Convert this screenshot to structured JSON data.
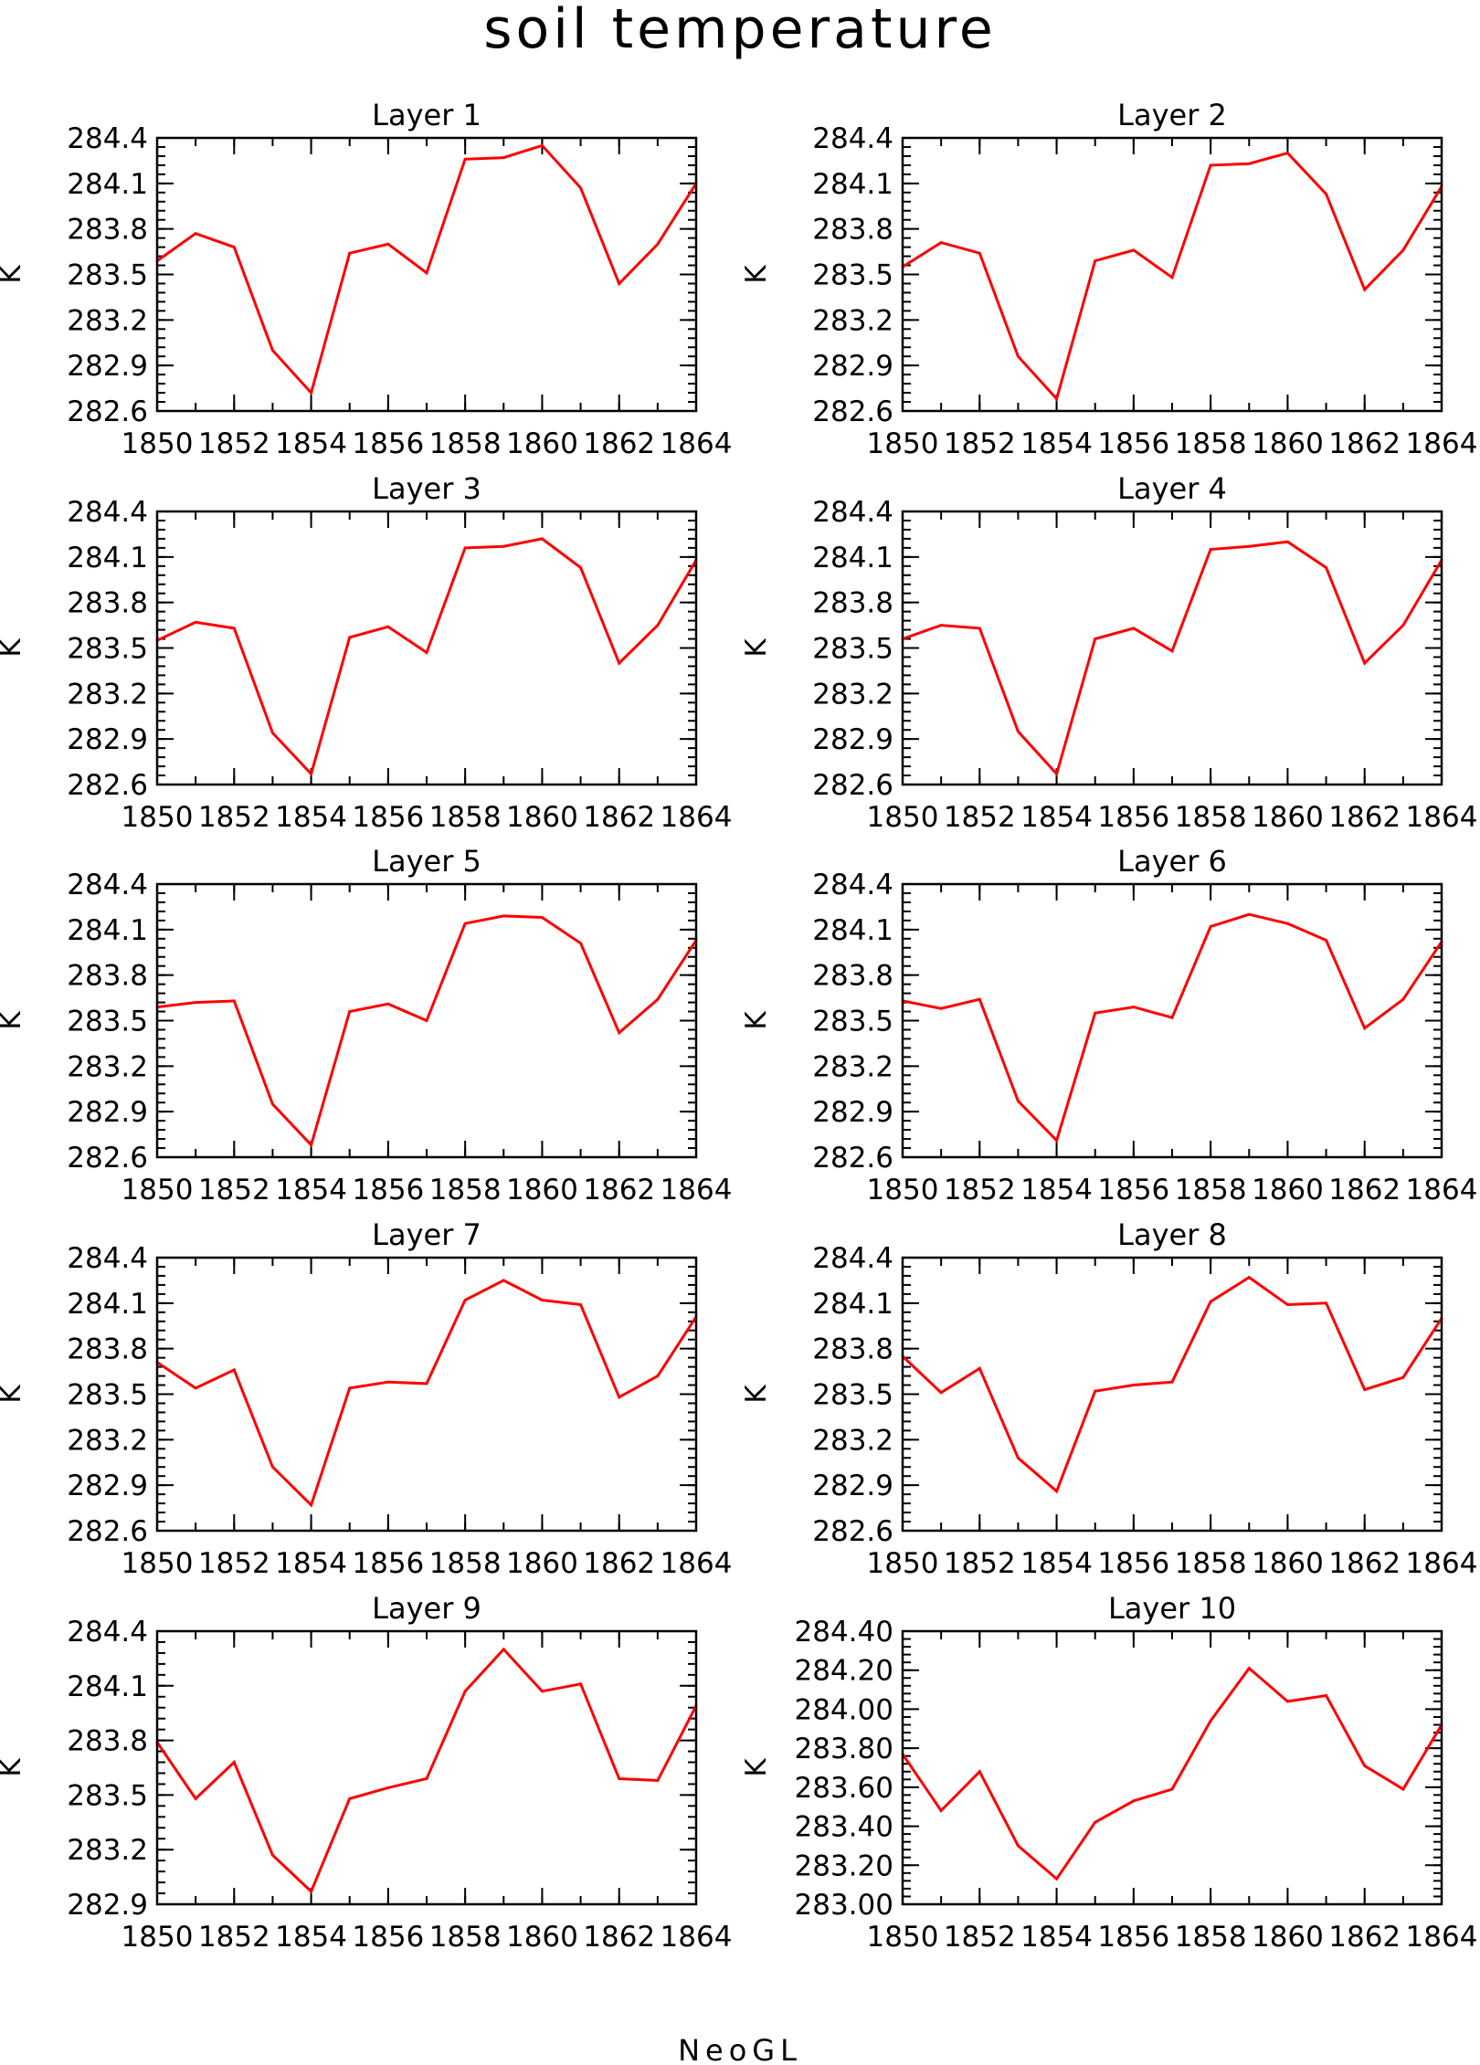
{
  "figure": {
    "title": "soil temperature",
    "footer": "NeoGL"
  },
  "colors": {
    "line": "#ff0000",
    "axis": "#000000"
  },
  "chart_data": [
    {
      "type": "line",
      "title": "Layer 1",
      "xlabel": "",
      "ylabel": "K",
      "x": [
        1850,
        1851,
        1852,
        1853,
        1854,
        1855,
        1856,
        1857,
        1858,
        1859,
        1860,
        1861,
        1862,
        1863,
        1864
      ],
      "xticks": [
        "1850",
        "1852",
        "1854",
        "1856",
        "1858",
        "1860",
        "1862",
        "1864"
      ],
      "ylim": [
        282.6,
        284.4
      ],
      "yticks": [
        "282.6",
        "282.9",
        "283.2",
        "283.5",
        "283.8",
        "284.1",
        "284.4"
      ],
      "series": [
        {
          "values": [
            283.59,
            283.77,
            283.68,
            283.0,
            282.72,
            283.64,
            283.7,
            283.51,
            284.26,
            284.27,
            284.35,
            284.07,
            283.44,
            283.7,
            284.1
          ]
        }
      ]
    },
    {
      "type": "line",
      "title": "Layer 2",
      "xlabel": "",
      "ylabel": "K",
      "x": [
        1850,
        1851,
        1852,
        1853,
        1854,
        1855,
        1856,
        1857,
        1858,
        1859,
        1860,
        1861,
        1862,
        1863,
        1864
      ],
      "xticks": [
        "1850",
        "1852",
        "1854",
        "1856",
        "1858",
        "1860",
        "1862",
        "1864"
      ],
      "ylim": [
        282.6,
        284.4
      ],
      "yticks": [
        "282.6",
        "282.9",
        "283.2",
        "283.5",
        "283.8",
        "284.1",
        "284.4"
      ],
      "series": [
        {
          "values": [
            283.55,
            283.71,
            283.64,
            282.96,
            282.68,
            283.59,
            283.66,
            283.48,
            284.22,
            284.23,
            284.3,
            284.03,
            283.4,
            283.66,
            284.08
          ]
        }
      ]
    },
    {
      "type": "line",
      "title": "Layer 3",
      "xlabel": "",
      "ylabel": "K",
      "x": [
        1850,
        1851,
        1852,
        1853,
        1854,
        1855,
        1856,
        1857,
        1858,
        1859,
        1860,
        1861,
        1862,
        1863,
        1864
      ],
      "xticks": [
        "1850",
        "1852",
        "1854",
        "1856",
        "1858",
        "1860",
        "1862",
        "1864"
      ],
      "ylim": [
        282.6,
        284.4
      ],
      "yticks": [
        "282.6",
        "282.9",
        "283.2",
        "283.5",
        "283.8",
        "284.1",
        "284.4"
      ],
      "series": [
        {
          "values": [
            283.55,
            283.67,
            283.63,
            282.94,
            282.67,
            283.57,
            283.64,
            283.47,
            284.16,
            284.17,
            284.22,
            284.03,
            283.4,
            283.65,
            284.08
          ]
        }
      ]
    },
    {
      "type": "line",
      "title": "Layer 4",
      "xlabel": "",
      "ylabel": "K",
      "x": [
        1850,
        1851,
        1852,
        1853,
        1854,
        1855,
        1856,
        1857,
        1858,
        1859,
        1860,
        1861,
        1862,
        1863,
        1864
      ],
      "xticks": [
        "1850",
        "1852",
        "1854",
        "1856",
        "1858",
        "1860",
        "1862",
        "1864"
      ],
      "ylim": [
        282.6,
        284.4
      ],
      "yticks": [
        "282.6",
        "282.9",
        "283.2",
        "283.5",
        "283.8",
        "284.1",
        "284.4"
      ],
      "series": [
        {
          "values": [
            283.56,
            283.65,
            283.63,
            282.95,
            282.67,
            283.56,
            283.63,
            283.48,
            284.15,
            284.17,
            284.2,
            284.03,
            283.4,
            283.65,
            284.08
          ]
        }
      ]
    },
    {
      "type": "line",
      "title": "Layer 5",
      "xlabel": "",
      "ylabel": "K",
      "x": [
        1850,
        1851,
        1852,
        1853,
        1854,
        1855,
        1856,
        1857,
        1858,
        1859,
        1860,
        1861,
        1862,
        1863,
        1864
      ],
      "xticks": [
        "1850",
        "1852",
        "1854",
        "1856",
        "1858",
        "1860",
        "1862",
        "1864"
      ],
      "ylim": [
        282.6,
        284.4
      ],
      "yticks": [
        "282.6",
        "282.9",
        "283.2",
        "283.5",
        "283.8",
        "284.1",
        "284.4"
      ],
      "series": [
        {
          "values": [
            283.59,
            283.62,
            283.63,
            282.95,
            282.68,
            283.56,
            283.61,
            283.5,
            284.14,
            284.19,
            284.18,
            284.01,
            283.42,
            283.64,
            284.03
          ]
        }
      ]
    },
    {
      "type": "line",
      "title": "Layer 6",
      "xlabel": "",
      "ylabel": "K",
      "x": [
        1850,
        1851,
        1852,
        1853,
        1854,
        1855,
        1856,
        1857,
        1858,
        1859,
        1860,
        1861,
        1862,
        1863,
        1864
      ],
      "xticks": [
        "1850",
        "1852",
        "1854",
        "1856",
        "1858",
        "1860",
        "1862",
        "1864"
      ],
      "ylim": [
        282.6,
        284.4
      ],
      "yticks": [
        "282.6",
        "282.9",
        "283.2",
        "283.5",
        "283.8",
        "284.1",
        "284.4"
      ],
      "series": [
        {
          "values": [
            283.63,
            283.58,
            283.64,
            282.97,
            282.71,
            283.55,
            283.59,
            283.52,
            284.12,
            284.2,
            284.14,
            284.03,
            283.45,
            283.64,
            284.02
          ]
        }
      ]
    },
    {
      "type": "line",
      "title": "Layer 7",
      "xlabel": "",
      "ylabel": "K",
      "x": [
        1850,
        1851,
        1852,
        1853,
        1854,
        1855,
        1856,
        1857,
        1858,
        1859,
        1860,
        1861,
        1862,
        1863,
        1864
      ],
      "xticks": [
        "1850",
        "1852",
        "1854",
        "1856",
        "1858",
        "1860",
        "1862",
        "1864"
      ],
      "ylim": [
        282.6,
        284.4
      ],
      "yticks": [
        "282.6",
        "282.9",
        "283.2",
        "283.5",
        "283.8",
        "284.1",
        "284.4"
      ],
      "series": [
        {
          "values": [
            283.71,
            283.54,
            283.66,
            283.02,
            282.77,
            283.54,
            283.58,
            283.57,
            284.12,
            284.25,
            284.12,
            284.09,
            283.48,
            283.62,
            284.01
          ]
        }
      ]
    },
    {
      "type": "line",
      "title": "Layer 8",
      "xlabel": "",
      "ylabel": "K",
      "x": [
        1850,
        1851,
        1852,
        1853,
        1854,
        1855,
        1856,
        1857,
        1858,
        1859,
        1860,
        1861,
        1862,
        1863,
        1864
      ],
      "xticks": [
        "1850",
        "1852",
        "1854",
        "1856",
        "1858",
        "1860",
        "1862",
        "1864"
      ],
      "ylim": [
        282.6,
        284.4
      ],
      "yticks": [
        "282.6",
        "282.9",
        "283.2",
        "283.5",
        "283.8",
        "284.1",
        "284.4"
      ],
      "series": [
        {
          "values": [
            283.75,
            283.51,
            283.67,
            283.08,
            282.86,
            283.52,
            283.56,
            283.58,
            284.11,
            284.27,
            284.09,
            284.1,
            283.53,
            283.61,
            284.0
          ]
        }
      ]
    },
    {
      "type": "line",
      "title": "Layer 9",
      "xlabel": "",
      "ylabel": "K",
      "x": [
        1850,
        1851,
        1852,
        1853,
        1854,
        1855,
        1856,
        1857,
        1858,
        1859,
        1860,
        1861,
        1862,
        1863,
        1864
      ],
      "xticks": [
        "1850",
        "1852",
        "1854",
        "1856",
        "1858",
        "1860",
        "1862",
        "1864"
      ],
      "ylim": [
        282.9,
        284.4
      ],
      "yticks": [
        "282.9",
        "283.2",
        "283.5",
        "283.8",
        "284.1",
        "284.4"
      ],
      "series": [
        {
          "values": [
            283.79,
            283.48,
            283.68,
            283.17,
            282.97,
            283.48,
            283.54,
            283.59,
            284.07,
            284.3,
            284.07,
            284.11,
            283.59,
            283.58,
            283.99
          ]
        }
      ]
    },
    {
      "type": "line",
      "title": "Layer 10",
      "xlabel": "",
      "ylabel": "K",
      "x": [
        1850,
        1851,
        1852,
        1853,
        1854,
        1855,
        1856,
        1857,
        1858,
        1859,
        1860,
        1861,
        1862,
        1863,
        1864
      ],
      "xticks": [
        "1850",
        "1852",
        "1854",
        "1856",
        "1858",
        "1860",
        "1862",
        "1864"
      ],
      "ylim": [
        283.0,
        284.4
      ],
      "yticks": [
        "283.00",
        "283.20",
        "283.40",
        "283.60",
        "283.80",
        "284.00",
        "284.20",
        "284.40"
      ],
      "series": [
        {
          "values": [
            283.77,
            283.48,
            283.68,
            283.3,
            283.13,
            283.42,
            283.53,
            283.59,
            283.94,
            284.21,
            284.04,
            284.07,
            283.71,
            283.59,
            283.92
          ]
        }
      ]
    }
  ]
}
